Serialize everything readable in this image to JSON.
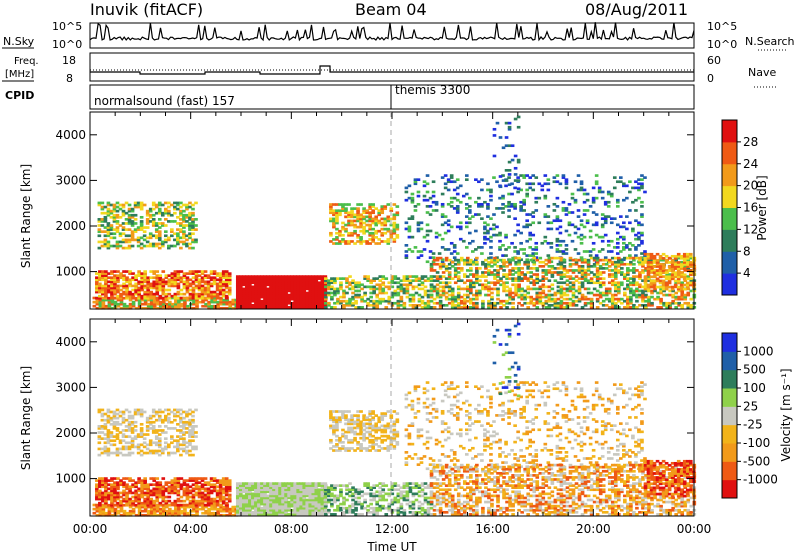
{
  "header": {
    "station": "Inuvik (fitACF)",
    "beam": "Beam 04",
    "date": "08/Aug/2011"
  },
  "strips": {
    "nsky_label": "N.Sky",
    "nsky_ticks": [
      "10^5",
      "10^0"
    ],
    "nsearch_label": "N.Search",
    "nsearch_ticks": [
      "10^5",
      "10^0"
    ],
    "freq_label": "Freq.",
    "freq_unit": "[MHz]",
    "freq_ticks": [
      "18",
      "8"
    ],
    "nave_label": "Nave",
    "nave_ticks": [
      "60",
      "0"
    ],
    "cpid_label": "CPID",
    "cpid_segments": [
      {
        "label": "normalsound (fast) 157",
        "start_hour": 0
      },
      {
        "label": "themis 3300",
        "start_hour": 12
      }
    ]
  },
  "chart_data": [
    {
      "type": "heatmap",
      "name": "power",
      "ylabel": "Slant Range [km]",
      "xlabel": "",
      "xlim": [
        0,
        24
      ],
      "ylim": [
        180,
        4500
      ],
      "ytick_labels": [
        "1000",
        "2000",
        "3000",
        "4000"
      ],
      "ytick_values": [
        1000,
        2000,
        3000,
        4000
      ],
      "colorbar": {
        "label": "Power [dB]",
        "boundaries": [
          0,
          4,
          8,
          12,
          16,
          20,
          24,
          28,
          32
        ],
        "tick_labels": [
          "4",
          "8",
          "12",
          "16",
          "20",
          "24",
          "28"
        ],
        "colors": [
          "#1f2fe0",
          "#1f5fa8",
          "#2e7d5b",
          "#4bbe4b",
          "#f2d81f",
          "#f29a1a",
          "#ef5a14",
          "#e01010"
        ]
      }
    },
    {
      "type": "heatmap",
      "name": "velocity",
      "ylabel": "Slant Range [km]",
      "xlabel": "Time UT",
      "xlim": [
        0,
        24
      ],
      "ylim": [
        180,
        4500
      ],
      "xtick_labels": [
        "00:00",
        "04:00",
        "08:00",
        "12:00",
        "16:00",
        "20:00",
        "00:00"
      ],
      "ytick_labels": [
        "1000",
        "2000",
        "3000",
        "4000"
      ],
      "ytick_values": [
        1000,
        2000,
        3000,
        4000
      ],
      "colorbar": {
        "label": "Velocity [m s⁻¹]",
        "boundaries": [
          -1500,
          -1000,
          -500,
          -100,
          -25,
          25,
          100,
          500,
          1000,
          1500
        ],
        "tick_labels": [
          "1000",
          "500",
          "100",
          "25",
          "-25",
          "-100",
          "-500",
          "-1000"
        ],
        "colors": [
          "#e01010",
          "#ef5a14",
          "#f29a1a",
          "#f2b31a",
          "#c8c8c0",
          "#8fd14a",
          "#2e7d5b",
          "#1f5fa8",
          "#1f2fe0"
        ]
      }
    }
  ]
}
